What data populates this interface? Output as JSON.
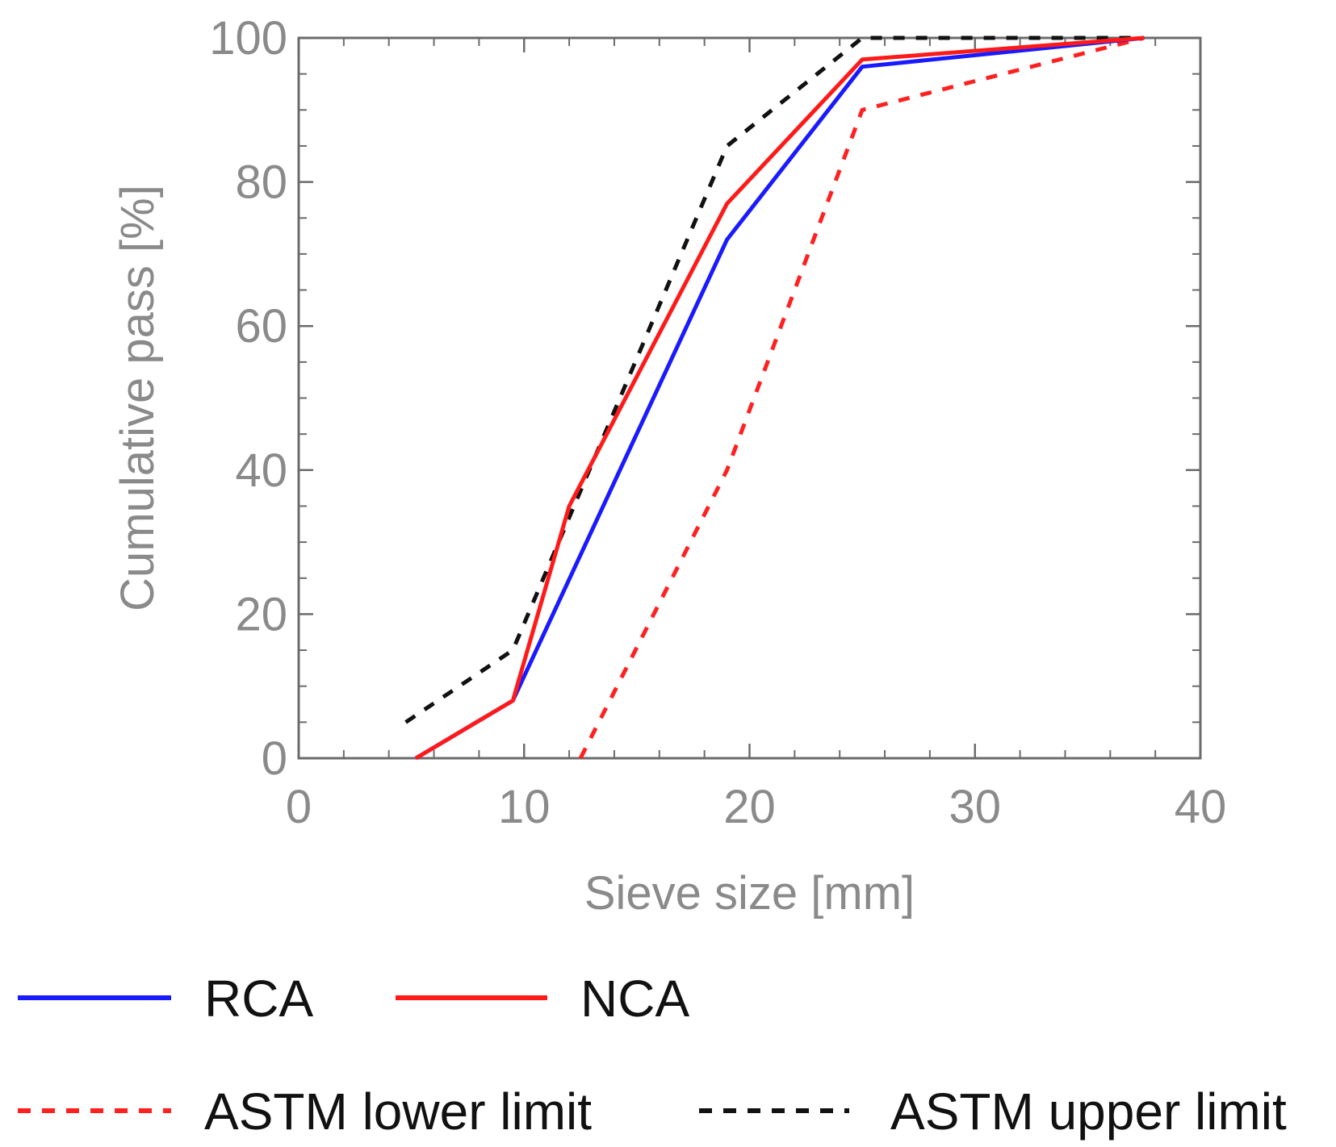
{
  "chart_data": {
    "type": "line",
    "title": "",
    "xlabel": "Sieve size [mm]",
    "ylabel": "Cumulative pass [%]",
    "xlim": [
      0,
      40
    ],
    "ylim": [
      0,
      100
    ],
    "xticks": [
      0,
      10,
      20,
      30,
      40
    ],
    "yticks": [
      0,
      20,
      40,
      60,
      80,
      100
    ],
    "grid": false,
    "legend_position": "bottom",
    "series": [
      {
        "name": "RCA",
        "color": "#1a1aff",
        "style": "solid",
        "x": [
          5.2,
          9.5,
          19,
          25,
          37.5
        ],
        "y": [
          0,
          8,
          72,
          96,
          100
        ]
      },
      {
        "name": "NCA",
        "color": "#ff1a1a",
        "style": "solid",
        "x": [
          5.2,
          9.5,
          12,
          19,
          25,
          37.5
        ],
        "y": [
          0,
          8,
          35,
          77,
          97,
          100
        ]
      },
      {
        "name": "ASTM lower limit",
        "color": "#ff2020",
        "style": "dashed",
        "x": [
          12.5,
          19,
          25,
          37.5
        ],
        "y": [
          0,
          40,
          90,
          100
        ]
      },
      {
        "name": "ASTM upper limit",
        "color": "#111111",
        "style": "dashed",
        "x": [
          4.75,
          9.5,
          19,
          25,
          37.5
        ],
        "y": [
          5,
          15,
          85,
          100,
          100
        ]
      }
    ]
  }
}
